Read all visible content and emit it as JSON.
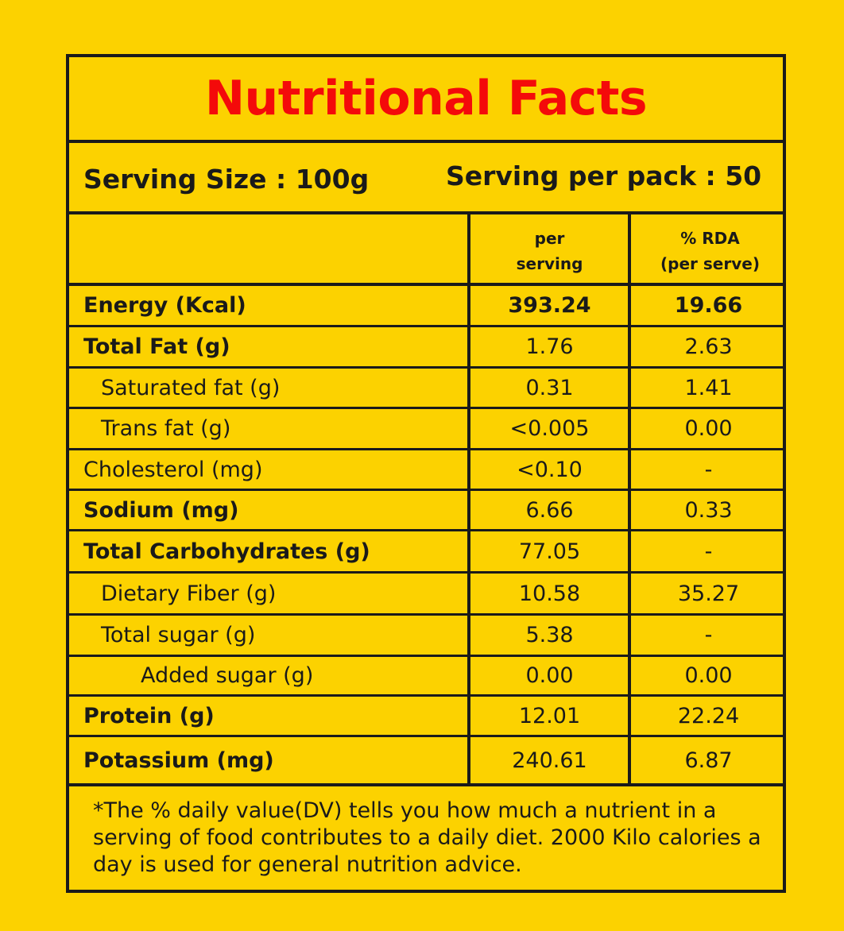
{
  "title": "Nutritional Facts",
  "serving": {
    "size": "Serving Size : 100g",
    "per_pack": "Serving per pack : 50"
  },
  "columns": {
    "per_serving": [
      "per",
      "serving"
    ],
    "rda": [
      "% RDA",
      "(per serve)"
    ]
  },
  "rows": [
    {
      "name": "Energy (Kcal)",
      "per_serving": "393.24",
      "rda": "19.66"
    },
    {
      "name": "Total Fat (g)",
      "per_serving": "1.76",
      "rda": "2.63"
    },
    {
      "name": "Saturated fat (g)",
      "per_serving": "0.31",
      "rda": "1.41"
    },
    {
      "name": "Trans fat (g)",
      "per_serving": "<0.005",
      "rda": "0.00"
    },
    {
      "name": "Cholesterol (mg)",
      "per_serving": "<0.10",
      "rda": "-"
    },
    {
      "name": "Sodium (mg)",
      "per_serving": "6.66",
      "rda": "0.33"
    },
    {
      "name": "Total Carbohydrates (g)",
      "per_serving": "77.05",
      "rda": "-"
    },
    {
      "name": "Dietary Fiber (g)",
      "per_serving": "10.58",
      "rda": "35.27"
    },
    {
      "name": "Total sugar (g)",
      "per_serving": "5.38",
      "rda": "-"
    },
    {
      "name": "Added sugar (g)",
      "per_serving": "0.00",
      "rda": "0.00"
    },
    {
      "name": "Protein (g)",
      "per_serving": "12.01",
      "rda": "22.24"
    },
    {
      "name": "Potassium (mg)",
      "per_serving": "240.61",
      "rda": "6.87"
    }
  ],
  "footnote": "*The % daily value(DV) tells you how much a nutrient in a serving of food contributes to a daily diet. 2000 Kilo calories a day is used for general nutrition advice.",
  "colors": {
    "background": "#FCD200",
    "title": "#F40A0A",
    "ink": "#1a1a1a"
  }
}
